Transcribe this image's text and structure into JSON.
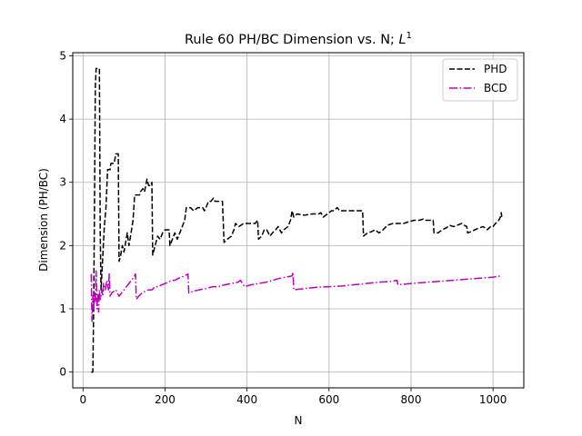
{
  "chart_data": {
    "type": "line",
    "title_main": "Rule 60 PH/BC Dimension vs. N; ",
    "title_math": "L",
    "title_sup": "1",
    "xlabel": "N",
    "ylabel": "Dimension (PH/BC)",
    "xlim": [
      -25,
      1075
    ],
    "ylim": [
      -0.25,
      5.05
    ],
    "xticks": [
      0,
      200,
      400,
      600,
      800,
      1000
    ],
    "yticks": [
      0,
      1,
      2,
      3,
      4,
      5
    ],
    "grid": true,
    "legend_position": "top-right",
    "series": [
      {
        "name": "PHD",
        "color": "#000000",
        "style": "dashed",
        "points": [
          [
            20,
            0
          ],
          [
            24,
            0
          ],
          [
            26,
            1.0
          ],
          [
            28,
            2.6
          ],
          [
            30,
            4.5
          ],
          [
            32,
            4.8
          ],
          [
            40,
            4.8
          ],
          [
            42,
            2.2
          ],
          [
            44,
            1.3
          ],
          [
            48,
            1.8
          ],
          [
            52,
            2.3
          ],
          [
            56,
            2.6
          ],
          [
            60,
            3.2
          ],
          [
            66,
            3.2
          ],
          [
            68,
            3.3
          ],
          [
            76,
            3.3
          ],
          [
            80,
            3.45
          ],
          [
            86,
            3.45
          ],
          [
            88,
            1.75
          ],
          [
            92,
            1.85
          ],
          [
            96,
            2.0
          ],
          [
            100,
            1.9
          ],
          [
            104,
            2.05
          ],
          [
            108,
            2.2
          ],
          [
            112,
            2.0
          ],
          [
            116,
            2.15
          ],
          [
            122,
            2.4
          ],
          [
            126,
            2.8
          ],
          [
            132,
            2.8
          ],
          [
            138,
            2.8
          ],
          [
            140,
            2.85
          ],
          [
            146,
            2.9
          ],
          [
            150,
            2.85
          ],
          [
            156,
            3.05
          ],
          [
            160,
            2.95
          ],
          [
            166,
            2.95
          ],
          [
            168,
            3.0
          ],
          [
            170,
            1.85
          ],
          [
            176,
            2.0
          ],
          [
            182,
            2.15
          ],
          [
            188,
            2.1
          ],
          [
            194,
            2.2
          ],
          [
            200,
            2.25
          ],
          [
            210,
            2.25
          ],
          [
            212,
            2.0
          ],
          [
            218,
            2.1
          ],
          [
            224,
            2.2
          ],
          [
            230,
            2.1
          ],
          [
            236,
            2.2
          ],
          [
            242,
            2.3
          ],
          [
            248,
            2.4
          ],
          [
            252,
            2.6
          ],
          [
            256,
            2.6
          ],
          [
            262,
            2.6
          ],
          [
            270,
            2.55
          ],
          [
            280,
            2.6
          ],
          [
            292,
            2.6
          ],
          [
            296,
            2.55
          ],
          [
            300,
            2.6
          ],
          [
            306,
            2.7
          ],
          [
            312,
            2.7
          ],
          [
            318,
            2.75
          ],
          [
            322,
            2.7
          ],
          [
            330,
            2.7
          ],
          [
            340,
            2.7
          ],
          [
            344,
            2.05
          ],
          [
            352,
            2.1
          ],
          [
            362,
            2.15
          ],
          [
            368,
            2.25
          ],
          [
            372,
            2.35
          ],
          [
            380,
            2.3
          ],
          [
            392,
            2.35
          ],
          [
            400,
            2.35
          ],
          [
            410,
            2.35
          ],
          [
            420,
            2.35
          ],
          [
            426,
            2.4
          ],
          [
            428,
            2.1
          ],
          [
            436,
            2.15
          ],
          [
            442,
            2.25
          ],
          [
            448,
            2.25
          ],
          [
            456,
            2.15
          ],
          [
            462,
            2.2
          ],
          [
            470,
            2.25
          ],
          [
            476,
            2.3
          ],
          [
            484,
            2.2
          ],
          [
            490,
            2.25
          ],
          [
            500,
            2.3
          ],
          [
            506,
            2.4
          ],
          [
            510,
            2.55
          ],
          [
            514,
            2.45
          ],
          [
            522,
            2.5
          ],
          [
            540,
            2.48
          ],
          [
            560,
            2.5
          ],
          [
            575,
            2.5
          ],
          [
            580,
            2.52
          ],
          [
            586,
            2.45
          ],
          [
            596,
            2.5
          ],
          [
            606,
            2.55
          ],
          [
            612,
            2.55
          ],
          [
            620,
            2.6
          ],
          [
            626,
            2.55
          ],
          [
            640,
            2.55
          ],
          [
            660,
            2.55
          ],
          [
            675,
            2.55
          ],
          [
            682,
            2.55
          ],
          [
            684,
            2.15
          ],
          [
            694,
            2.2
          ],
          [
            704,
            2.22
          ],
          [
            712,
            2.25
          ],
          [
            722,
            2.2
          ],
          [
            732,
            2.25
          ],
          [
            742,
            2.32
          ],
          [
            756,
            2.35
          ],
          [
            770,
            2.35
          ],
          [
            782,
            2.35
          ],
          [
            796,
            2.38
          ],
          [
            808,
            2.4
          ],
          [
            820,
            2.4
          ],
          [
            830,
            2.42
          ],
          [
            836,
            2.4
          ],
          [
            846,
            2.4
          ],
          [
            854,
            2.4
          ],
          [
            856,
            2.2
          ],
          [
            866,
            2.2
          ],
          [
            876,
            2.25
          ],
          [
            886,
            2.28
          ],
          [
            894,
            2.32
          ],
          [
            904,
            2.3
          ],
          [
            912,
            2.32
          ],
          [
            924,
            2.35
          ],
          [
            930,
            2.32
          ],
          [
            936,
            2.3
          ],
          [
            938,
            2.2
          ],
          [
            946,
            2.22
          ],
          [
            956,
            2.25
          ],
          [
            966,
            2.28
          ],
          [
            976,
            2.3
          ],
          [
            986,
            2.25
          ],
          [
            994,
            2.3
          ],
          [
            1000,
            2.3
          ],
          [
            1006,
            2.35
          ],
          [
            1012,
            2.38
          ],
          [
            1018,
            2.45
          ],
          [
            1020,
            2.52
          ],
          [
            1022,
            2.42
          ]
        ]
      },
      {
        "name": "BCD",
        "color": "#bf00bf",
        "style": "dashdot",
        "points": [
          [
            20,
            1.55
          ],
          [
            22,
            0.8
          ],
          [
            24,
            1.2
          ],
          [
            26,
            1.0
          ],
          [
            28,
            1.25
          ],
          [
            30,
            1.1
          ],
          [
            32,
            1.6
          ],
          [
            34,
            1.0
          ],
          [
            36,
            1.25
          ],
          [
            38,
            0.95
          ],
          [
            40,
            1.3
          ],
          [
            42,
            1.15
          ],
          [
            44,
            1.2
          ],
          [
            46,
            1.3
          ],
          [
            48,
            1.2
          ],
          [
            50,
            1.4
          ],
          [
            54,
            1.3
          ],
          [
            58,
            1.45
          ],
          [
            62,
            1.3
          ],
          [
            64,
            1.55
          ],
          [
            66,
            1.2
          ],
          [
            70,
            1.25
          ],
          [
            76,
            1.28
          ],
          [
            80,
            1.3
          ],
          [
            84,
            1.25
          ],
          [
            88,
            1.2
          ],
          [
            94,
            1.25
          ],
          [
            100,
            1.3
          ],
          [
            106,
            1.35
          ],
          [
            112,
            1.4
          ],
          [
            118,
            1.45
          ],
          [
            124,
            1.5
          ],
          [
            128,
            1.55
          ],
          [
            130,
            1.15
          ],
          [
            136,
            1.2
          ],
          [
            144,
            1.25
          ],
          [
            152,
            1.28
          ],
          [
            160,
            1.3
          ],
          [
            168,
            1.3
          ],
          [
            176,
            1.35
          ],
          [
            184,
            1.35
          ],
          [
            192,
            1.38
          ],
          [
            200,
            1.4
          ],
          [
            208,
            1.42
          ],
          [
            216,
            1.45
          ],
          [
            224,
            1.45
          ],
          [
            232,
            1.48
          ],
          [
            240,
            1.5
          ],
          [
            248,
            1.52
          ],
          [
            256,
            1.55
          ],
          [
            258,
            1.25
          ],
          [
            270,
            1.28
          ],
          [
            284,
            1.3
          ],
          [
            300,
            1.32
          ],
          [
            316,
            1.35
          ],
          [
            330,
            1.35
          ],
          [
            346,
            1.38
          ],
          [
            362,
            1.4
          ],
          [
            378,
            1.42
          ],
          [
            384,
            1.45
          ],
          [
            394,
            1.35
          ],
          [
            410,
            1.38
          ],
          [
            428,
            1.4
          ],
          [
            446,
            1.42
          ],
          [
            462,
            1.45
          ],
          [
            478,
            1.48
          ],
          [
            494,
            1.5
          ],
          [
            510,
            1.52
          ],
          [
            512,
            1.58
          ],
          [
            514,
            1.3
          ],
          [
            540,
            1.32
          ],
          [
            570,
            1.34
          ],
          [
            600,
            1.35
          ],
          [
            630,
            1.36
          ],
          [
            660,
            1.38
          ],
          [
            690,
            1.4
          ],
          [
            720,
            1.42
          ],
          [
            748,
            1.43
          ],
          [
            766,
            1.45
          ],
          [
            768,
            1.38
          ],
          [
            800,
            1.4
          ],
          [
            840,
            1.42
          ],
          [
            880,
            1.44
          ],
          [
            920,
            1.46
          ],
          [
            960,
            1.48
          ],
          [
            1000,
            1.5
          ],
          [
            1020,
            1.52
          ]
        ]
      }
    ]
  }
}
